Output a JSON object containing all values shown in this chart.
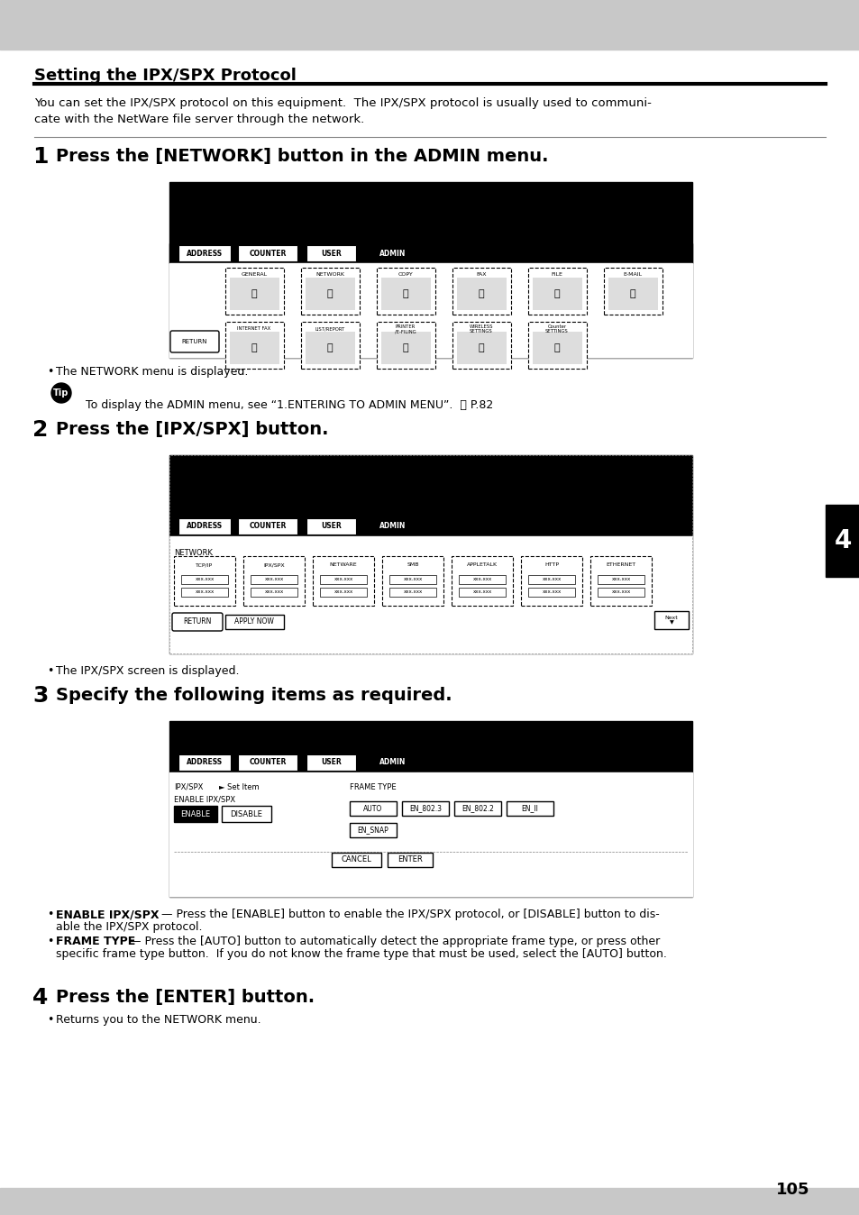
{
  "title": "Setting the IPX/SPX Protocol",
  "bg_color": "#cccccc",
  "page_bg": "#ffffff",
  "intro_text": "You can set the IPX/SPX protocol on this equipment.  The IPX/SPX protocol is usually used to communi-\ncate with the NetWare file server through the network.",
  "step1_heading": "Press the [NETWORK] button in the ADMIN menu.",
  "step1_bullet": "The NETWORK menu is displayed.",
  "tip_text": "To display the ADMIN menu, see “1.ENTERING TO ADMIN MENU”.  ⓕ P.82",
  "step2_heading": "Press the [IPX/SPX] button.",
  "step2_bullet": "The IPX/SPX screen is displayed.",
  "step3_heading": "Specify the following items as required.",
  "step3_bullet1": "ENABLE IPX/SPX — Press the [ENABLE] button to enable the IPX/SPX protocol, or [DISABLE] button to dis-\nable the IPX/SPX protocol.",
  "step3_bullet2": "FRAME TYPE — Press the [AUTO] button to automatically detect the appropriate frame type, or press other\nspecific frame type button.  If you do not know the frame type that must be used, select the [AUTO] button.",
  "step4_heading": "Press the [ENTER] button.",
  "step4_bullet": "Returns you to the NETWORK menu.",
  "page_number": "105",
  "tab_number": "4"
}
